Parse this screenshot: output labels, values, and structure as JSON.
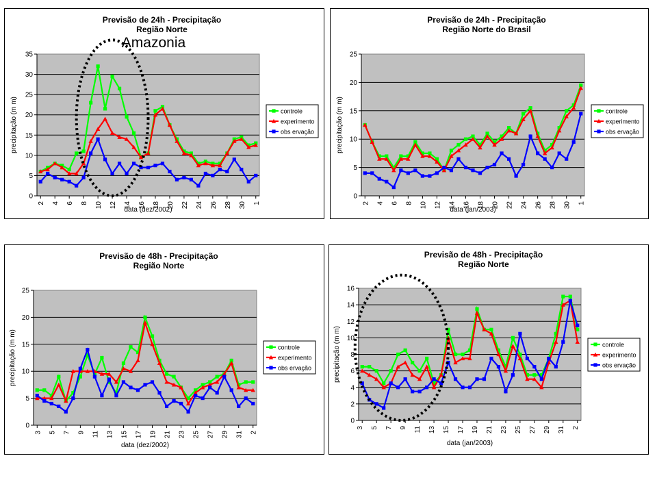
{
  "chart_data": [
    {
      "type": "line",
      "title": "Previsão de 24h - Precipitação",
      "subtitle": "Região Norte",
      "annotation": "Amazonia",
      "xlabel": "data (dez/2002)",
      "ylabel": "precipitação (m m)",
      "ylim": [
        0,
        35
      ],
      "ytick_step": 5,
      "grid": true,
      "legend": "right",
      "categories": [
        "2",
        "3",
        "4",
        "5",
        "6",
        "7",
        "8",
        "9",
        "10",
        "11",
        "12",
        "13",
        "14",
        "15",
        "16",
        "17",
        "18",
        "19",
        "20",
        "21",
        "22",
        "23",
        "24",
        "25",
        "26",
        "27",
        "28",
        "29",
        "30",
        "31",
        "1"
      ],
      "tick_labels": [
        "2",
        "4",
        "6",
        "8",
        "10",
        "12",
        "14",
        "16",
        "18",
        "20",
        "22",
        "24",
        "26",
        "28",
        "30",
        "1"
      ],
      "highlight": {
        "from": 5,
        "to": 15
      },
      "series": [
        {
          "name": "controle",
          "color": "#00ff00",
          "marker": "square",
          "values": [
            6,
            7,
            8,
            7.5,
            6.5,
            10.5,
            11,
            23,
            32,
            21.5,
            29.5,
            26.5,
            19.5,
            15.5,
            9.5,
            10.5,
            21,
            22,
            17.5,
            14,
            11,
            10.5,
            8,
            8.5,
            8,
            8,
            10.5,
            14,
            14.5,
            12.5,
            13
          ]
        },
        {
          "name": "experimento",
          "color": "#ff0000",
          "marker": "triangle",
          "values": [
            6,
            6.5,
            8,
            7,
            5.5,
            5.5,
            8,
            13.5,
            16.5,
            19,
            15.5,
            14.5,
            14,
            12,
            9.5,
            10.5,
            20,
            21.5,
            17.5,
            13.5,
            10.5,
            10,
            7.5,
            8,
            7.5,
            7.5,
            10.5,
            13.5,
            14,
            12,
            12.5
          ]
        },
        {
          "name": "obs ervação",
          "color": "#0000ff",
          "marker": "square",
          "values": [
            3.5,
            5.5,
            4.5,
            4,
            3.5,
            2.5,
            4.5,
            10.5,
            14,
            9,
            5.5,
            8,
            5.5,
            8,
            7,
            7,
            7.5,
            8,
            6,
            4,
            4.5,
            4,
            2.5,
            5.5,
            5,
            6.5,
            6,
            9,
            6.5,
            3.5,
            5
          ]
        }
      ]
    },
    {
      "type": "line",
      "title": "Previsão de 24h - Precipitação",
      "subtitle": "Região Norte do Brasil",
      "xlabel": "data (jan/2003)",
      "ylabel": "precipitação (m m)",
      "ylim": [
        0,
        25
      ],
      "ytick_step": 5,
      "grid": true,
      "legend": "right",
      "categories": [
        "2",
        "3",
        "4",
        "5",
        "6",
        "7",
        "8",
        "9",
        "10",
        "11",
        "12",
        "13",
        "14",
        "15",
        "16",
        "17",
        "18",
        "19",
        "20",
        "21",
        "22",
        "23",
        "24",
        "25",
        "26",
        "27",
        "28",
        "29",
        "30",
        "31",
        "1"
      ],
      "tick_labels": [
        "2",
        "4",
        "6",
        "8",
        "10",
        "12",
        "14",
        "16",
        "18",
        "20",
        "22",
        "24",
        "26",
        "28",
        "30",
        "1"
      ],
      "series": [
        {
          "name": "controle",
          "color": "#00ff00",
          "marker": "square",
          "values": [
            12.5,
            9.5,
            7,
            7,
            5,
            7,
            7,
            9.5,
            7.5,
            7.5,
            6.5,
            4.5,
            8,
            9,
            10,
            10.5,
            9,
            11,
            9.5,
            10.5,
            12,
            11,
            14.5,
            15.5,
            11,
            8,
            9,
            12,
            15,
            16,
            19.5
          ]
        },
        {
          "name": "experimento",
          "color": "#ff0000",
          "marker": "triangle",
          "values": [
            12.5,
            9.5,
            6.5,
            6.5,
            4.5,
            6.5,
            6.5,
            9,
            7,
            7,
            6,
            4.5,
            7,
            8,
            9,
            10,
            8.5,
            10.5,
            9,
            10,
            11.5,
            11,
            13.5,
            15,
            10.5,
            7.5,
            8.5,
            11.5,
            14,
            15.5,
            19
          ]
        },
        {
          "name": "obs ervação",
          "color": "#0000ff",
          "marker": "square",
          "values": [
            4,
            4,
            3,
            2.5,
            1.5,
            4.5,
            4,
            4.5,
            3.5,
            3.5,
            4,
            5,
            4.5,
            6.5,
            5,
            4.5,
            4,
            5,
            5.5,
            7.5,
            6.5,
            3.5,
            5.5,
            10.5,
            7.5,
            6.5,
            5,
            7.5,
            6.5,
            9.5,
            14.5
          ]
        }
      ]
    },
    {
      "type": "line",
      "title": "Previsão de 48h - Precipitação",
      "subtitle": "Região Norte",
      "xlabel": "data (dez/2002)",
      "ylabel": "precipitação (m m)",
      "ylim": [
        0,
        25
      ],
      "ytick_step": 5,
      "grid": true,
      "legend": "right",
      "categories": [
        "3",
        "4",
        "5",
        "6",
        "7",
        "8",
        "9",
        "10",
        "11",
        "12",
        "13",
        "14",
        "15",
        "16",
        "17",
        "18",
        "19",
        "20",
        "21",
        "22",
        "23",
        "24",
        "25",
        "26",
        "27",
        "28",
        "29",
        "30",
        "31",
        "1",
        "2"
      ],
      "tick_labels": [
        "3",
        "5",
        "7",
        "9",
        "11",
        "13",
        "15",
        "17",
        "19",
        "21",
        "23",
        "25",
        "27",
        "29",
        "31",
        "2"
      ],
      "series": [
        {
          "name": "controle",
          "color": "#00ff00",
          "marker": "square",
          "values": [
            6.5,
            6.5,
            5.5,
            9,
            4.5,
            6,
            9,
            13,
            9.5,
            12.5,
            8,
            6,
            11.5,
            14.5,
            13.5,
            20,
            16.5,
            12,
            9.5,
            9,
            7,
            5,
            6.5,
            7.5,
            8,
            9,
            9.5,
            12,
            7.5,
            8,
            8
          ]
        },
        {
          "name": "experimento",
          "color": "#ff0000",
          "marker": "triangle",
          "values": [
            5,
            5,
            5,
            7.5,
            4.5,
            10,
            10,
            10,
            10,
            9.5,
            9.5,
            8,
            10.5,
            10,
            12,
            19,
            15,
            11.5,
            8,
            7.5,
            7,
            4,
            6,
            7,
            7.5,
            8,
            9.5,
            11.5,
            7,
            6.5,
            6.5
          ]
        },
        {
          "name": "obs ervação",
          "color": "#0000ff",
          "marker": "square",
          "values": [
            5.5,
            4.5,
            4,
            3.5,
            2.5,
            5,
            10.5,
            14,
            9,
            5.5,
            8.5,
            5.5,
            8,
            7,
            6.5,
            7.5,
            8,
            6,
            3.5,
            4.5,
            4,
            2.5,
            5.5,
            5,
            7,
            6,
            9,
            6.5,
            3.5,
            5,
            4
          ]
        }
      ]
    },
    {
      "type": "line",
      "title": "Previsão de 48h - Precipitação",
      "subtitle": "Região Norte",
      "xlabel": "data (jan/2003)",
      "ylabel": "precipitação (m m)",
      "ylim": [
        0,
        16
      ],
      "ytick_step": 2,
      "grid": true,
      "legend": "right",
      "categories": [
        "3",
        "4",
        "5",
        "6",
        "7",
        "8",
        "9",
        "10",
        "11",
        "12",
        "13",
        "14",
        "15",
        "16",
        "17",
        "18",
        "19",
        "20",
        "21",
        "22",
        "23",
        "24",
        "25",
        "26",
        "27",
        "28",
        "29",
        "30",
        "31",
        "1",
        "2"
      ],
      "tick_labels": [
        "3",
        "5",
        "7",
        "9",
        "11",
        "13",
        "15",
        "17",
        "19",
        "21",
        "23",
        "25",
        "27",
        "29",
        "31",
        "2"
      ],
      "highlight": {
        "from": -1,
        "to": 12
      },
      "series": [
        {
          "name": "controle",
          "color": "#00ff00",
          "marker": "square",
          "values": [
            6.5,
            6.5,
            6,
            4.5,
            6,
            8,
            8.5,
            7,
            6,
            7.5,
            4.5,
            5.5,
            11,
            8,
            8,
            8.5,
            13.5,
            11,
            11,
            8.5,
            6.5,
            10,
            8,
            5.5,
            5.5,
            5.5,
            7.5,
            10.5,
            15,
            15,
            11
          ]
        },
        {
          "name": "experimento",
          "color": "#ff0000",
          "marker": "triangle",
          "values": [
            6,
            5.5,
            5,
            4,
            4.5,
            6.5,
            7,
            5.5,
            5,
            6.5,
            4,
            5.5,
            10,
            7,
            7.5,
            7.5,
            13,
            11,
            10.5,
            8,
            6,
            9,
            7.5,
            5,
            5,
            4,
            7,
            9.5,
            14,
            14.5,
            9.5
          ]
        },
        {
          "name": "obs ervação",
          "color": "#0000ff",
          "marker": "square",
          "values": [
            4.5,
            2.5,
            2,
            1.5,
            4.5,
            4,
            5,
            3.5,
            3.5,
            4,
            5,
            4.5,
            7,
            5,
            4,
            4,
            5,
            5,
            7.5,
            6.5,
            3.5,
            5.5,
            10.5,
            7.5,
            6.5,
            5,
            7.5,
            6.5,
            9.5,
            14.5,
            11.5
          ]
        }
      ]
    }
  ]
}
